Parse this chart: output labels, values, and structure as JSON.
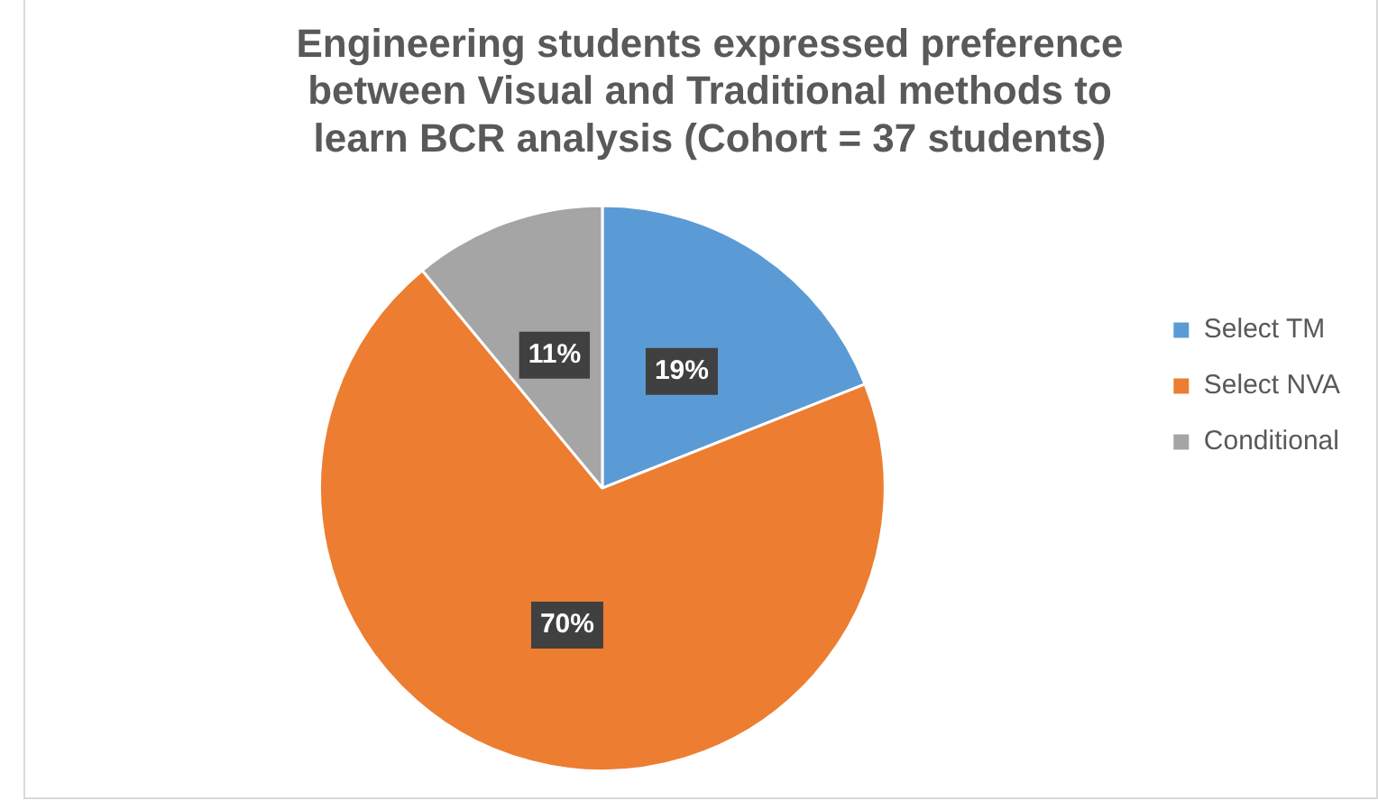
{
  "chart_data": {
    "type": "pie",
    "title": "Engineering students expressed preference between Visual and Traditional methods to learn BCR analysis (Cohort = 37 students)",
    "categories": [
      "Select TM",
      "Select NVA",
      "Conditional"
    ],
    "values": [
      19,
      70,
      11
    ],
    "colors": [
      "#5b9bd5",
      "#ed7d31",
      "#a5a5a5"
    ],
    "value_labels": [
      "19%",
      "70%",
      "11%"
    ],
    "legend": "right"
  }
}
